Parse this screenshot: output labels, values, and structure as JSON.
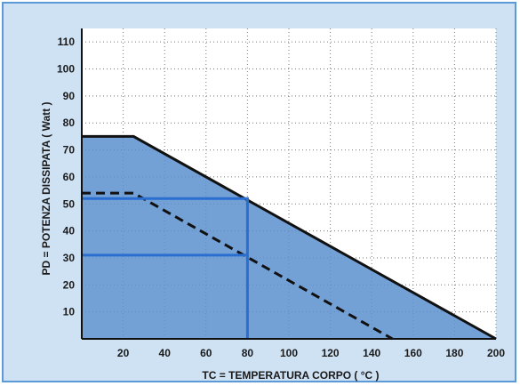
{
  "chart_data": {
    "type": "line",
    "xlabel": "TC = TEMPERATURA CORPO ( °C )",
    "ylabel": "PD = POTENZA DISSIPATA  ( Watt )",
    "xlim": [
      0,
      200
    ],
    "ylim": [
      0,
      115
    ],
    "x_ticks": [
      20,
      40,
      60,
      80,
      100,
      120,
      140,
      160,
      180,
      200
    ],
    "y_ticks": [
      10,
      20,
      30,
      40,
      50,
      60,
      70,
      80,
      90,
      100,
      110
    ],
    "grid": true,
    "series": [
      {
        "style": "solid",
        "color": "#111111",
        "fill": "#5b8fce",
        "points": [
          [
            0,
            75
          ],
          [
            25,
            75
          ],
          [
            200,
            0
          ]
        ]
      },
      {
        "style": "dashed",
        "color": "#111111",
        "points": [
          [
            0,
            54
          ],
          [
            25,
            54
          ],
          [
            150,
            0
          ]
        ]
      }
    ],
    "reference_lines": [
      {
        "color": "#2a6fd0",
        "points": [
          [
            0,
            52
          ],
          [
            80,
            52
          ],
          [
            80,
            0
          ]
        ]
      },
      {
        "color": "#2a6fd0",
        "points": [
          [
            0,
            31
          ],
          [
            80,
            31
          ]
        ]
      }
    ]
  }
}
